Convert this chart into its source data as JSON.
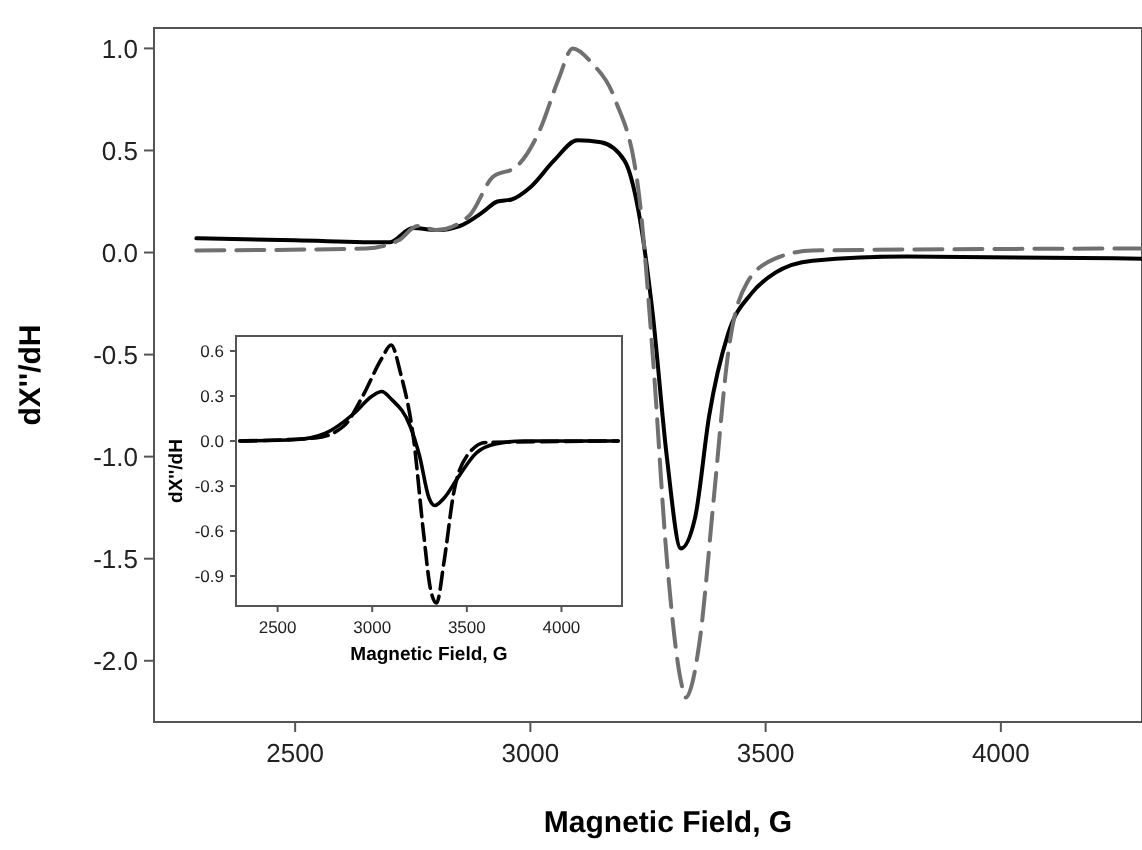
{
  "chart_data": [
    {
      "type": "line",
      "xlabel": "Magnetic Field, G",
      "ylabel": "dX''/dH",
      "xlim": [
        2200,
        4300
      ],
      "ylim": [
        -2.3,
        1.1
      ],
      "xticks": [
        2500,
        3000,
        3500,
        4000
      ],
      "yticks": [
        {
          "value": 1,
          "label": "1.0"
        },
        0.5,
        {
          "value": 0,
          "label": "0.0"
        },
        -0.5,
        {
          "value": -1,
          "label": "-1.0"
        },
        -1.5,
        {
          "value": -2,
          "label": "-2.0"
        }
      ],
      "grid": false,
      "series": [
        {
          "color": "#000000",
          "line_style": "solid",
          "x": [
            2290,
            2500,
            2700,
            2750,
            2800,
            2850,
            2900,
            2930,
            2960,
            3000,
            3050,
            3100,
            3150,
            3200,
            3230,
            3260,
            3290,
            3320,
            3350,
            3380,
            3420,
            3470,
            3520,
            3600,
            3800,
            4300
          ],
          "values": [
            0.07,
            0.06,
            0.05,
            0.12,
            0.11,
            0.13,
            0.2,
            0.25,
            0.26,
            0.32,
            0.45,
            0.55,
            0.54,
            0.45,
            0.2,
            -0.3,
            -1.0,
            -1.45,
            -1.3,
            -0.8,
            -0.4,
            -0.2,
            -0.1,
            -0.04,
            -0.02,
            -0.03
          ]
        },
        {
          "color": "#707070",
          "line_style": "dashed",
          "x": [
            2290,
            2650,
            2720,
            2760,
            2800,
            2870,
            2920,
            2970,
            3020,
            3060,
            3090,
            3130,
            3180,
            3230,
            3260,
            3290,
            3320,
            3330,
            3360,
            3390,
            3420,
            3460,
            3520,
            3600,
            4300
          ],
          "values": [
            0.01,
            0.02,
            0.06,
            0.13,
            0.11,
            0.18,
            0.37,
            0.42,
            0.6,
            0.85,
            1.0,
            0.93,
            0.75,
            0.3,
            -0.5,
            -1.5,
            -2.1,
            -2.18,
            -1.9,
            -1.2,
            -0.5,
            -0.15,
            -0.03,
            0.01,
            0.02
          ]
        }
      ]
    },
    {
      "type": "line",
      "xlabel": "Magnetic Field, G",
      "ylabel": "dX''/dH",
      "xlim": [
        2280,
        4320
      ],
      "ylim": [
        -1.1,
        0.7
      ],
      "xticks": [
        2500,
        3000,
        3500,
        4000
      ],
      "yticks": [
        0.6,
        0.3,
        {
          "value": 0,
          "label": "0.0"
        },
        -0.3,
        -0.6,
        -0.9
      ],
      "grid": false,
      "series": [
        {
          "color": "#000000",
          "line_style": "solid",
          "x": [
            2300,
            2600,
            2750,
            2900,
            3000,
            3050,
            3100,
            3200,
            3250,
            3300,
            3330,
            3380,
            3450,
            3550,
            3650,
            3800,
            4300
          ],
          "values": [
            0,
            0.01,
            0.05,
            0.18,
            0.3,
            0.33,
            0.28,
            0.1,
            -0.1,
            -0.38,
            -0.43,
            -0.38,
            -0.25,
            -0.08,
            -0.02,
            0,
            0
          ]
        },
        {
          "color": "#000000",
          "line_style": "dashed",
          "x": [
            2300,
            2700,
            2850,
            2950,
            3050,
            3100,
            3150,
            3220,
            3270,
            3310,
            3340,
            3380,
            3430,
            3500,
            3600,
            4300
          ],
          "values": [
            0,
            0.02,
            0.1,
            0.3,
            0.55,
            0.64,
            0.45,
            0,
            -0.6,
            -1.0,
            -1.08,
            -0.8,
            -0.35,
            -0.1,
            -0.01,
            0
          ]
        }
      ]
    }
  ]
}
